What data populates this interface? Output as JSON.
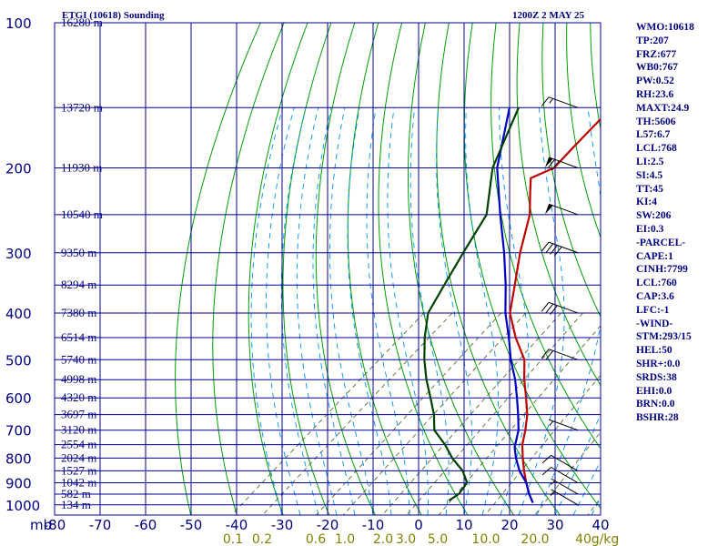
{
  "chart_data": {
    "type": "line",
    "title": "ETGI (10618) Sounding",
    "subtitle": "1200Z  2 MAY 25",
    "pressure_axis": {
      "label": "mb",
      "ticks": [
        100,
        200,
        300,
        400,
        500,
        600,
        700,
        800,
        900,
        1000
      ],
      "range": [
        100,
        1050
      ],
      "scale": "log"
    },
    "temperature_axis": {
      "ticks": [
        -80,
        -70,
        -60,
        -50,
        -40,
        -30,
        -20,
        -10,
        0,
        10,
        20,
        30,
        40
      ],
      "range": [
        -80,
        40
      ]
    },
    "mixing_ratio_axis": {
      "unit": "g/kg",
      "labels": [
        "0.1",
        "0.2",
        "0.6",
        "1.0",
        "2.0",
        "3.0",
        "5.0",
        "10.0",
        "20.0",
        "40"
      ]
    },
    "height_labels": [
      {
        "p": 100,
        "text": "16280 m"
      },
      {
        "p": 150,
        "text": "13720 m"
      },
      {
        "p": 200,
        "text": "11930 m"
      },
      {
        "p": 250,
        "text": "10540 m"
      },
      {
        "p": 300,
        "text": "9350 m"
      },
      {
        "p": 350,
        "text": "8294 m"
      },
      {
        "p": 400,
        "text": "7380 m"
      },
      {
        "p": 450,
        "text": "6514 m"
      },
      {
        "p": 500,
        "text": "5740 m"
      },
      {
        "p": 550,
        "text": "4998 m"
      },
      {
        "p": 600,
        "text": "4320 m"
      },
      {
        "p": 650,
        "text": "3697 m"
      },
      {
        "p": 700,
        "text": "3120 m"
      },
      {
        "p": 750,
        "text": "2554 m"
      },
      {
        "p": 800,
        "text": "2024 m"
      },
      {
        "p": 850,
        "text": "1527 m"
      },
      {
        "p": 900,
        "text": "1042 m"
      },
      {
        "p": 950,
        "text": "582 m"
      },
      {
        "p": 1000,
        "text": "134 m"
      }
    ],
    "series": [
      {
        "key": "temperature",
        "color": "#c00000",
        "points": [
          {
            "p": 100,
            "t": -60.5
          },
          {
            "p": 150,
            "t": -60.0
          },
          {
            "p": 160,
            "t": -60.0
          },
          {
            "p": 180,
            "t": -59.0
          },
          {
            "p": 200,
            "t": -58.0
          },
          {
            "p": 210,
            "t": -60.5
          },
          {
            "p": 225,
            "t": -57.0
          },
          {
            "p": 250,
            "t": -51.5
          },
          {
            "p": 300,
            "t": -44.0
          },
          {
            "p": 350,
            "t": -37.0
          },
          {
            "p": 400,
            "t": -31.0
          },
          {
            "p": 450,
            "t": -23.5
          },
          {
            "p": 500,
            "t": -16.0
          },
          {
            "p": 550,
            "t": -11.0
          },
          {
            "p": 600,
            "t": -6.0
          },
          {
            "p": 650,
            "t": -1.5
          },
          {
            "p": 700,
            "t": 2.0
          },
          {
            "p": 750,
            "t": 5.0
          },
          {
            "p": 800,
            "t": 8.5
          },
          {
            "p": 850,
            "t": 12.0
          },
          {
            "p": 900,
            "t": 15.5
          },
          {
            "p": 950,
            "t": 19.0
          },
          {
            "p": 990,
            "t": 22.0
          }
        ]
      },
      {
        "key": "parcel",
        "color": "#0000c0",
        "points": [
          {
            "p": 150,
            "t": -83.0
          },
          {
            "p": 200,
            "t": -70.5
          },
          {
            "p": 250,
            "t": -58.0
          },
          {
            "p": 300,
            "t": -47.5
          },
          {
            "p": 350,
            "t": -39.0
          },
          {
            "p": 400,
            "t": -32.0
          },
          {
            "p": 450,
            "t": -25.0
          },
          {
            "p": 500,
            "t": -19.0
          },
          {
            "p": 550,
            "t": -13.0
          },
          {
            "p": 600,
            "t": -8.0
          },
          {
            "p": 650,
            "t": -3.5
          },
          {
            "p": 700,
            "t": 0.5
          },
          {
            "p": 760,
            "t": 4.0
          },
          {
            "p": 800,
            "t": 7.0
          },
          {
            "p": 850,
            "t": 11.0
          },
          {
            "p": 900,
            "t": 15.5
          },
          {
            "p": 950,
            "t": 19.0
          },
          {
            "p": 990,
            "t": 22.0
          }
        ]
      },
      {
        "key": "dewpoint",
        "color": "#004000",
        "points": [
          {
            "p": 150,
            "t": -81.0
          },
          {
            "p": 200,
            "t": -71.5
          },
          {
            "p": 250,
            "t": -61.0
          },
          {
            "p": 300,
            "t": -56.5
          },
          {
            "p": 350,
            "t": -52.5
          },
          {
            "p": 400,
            "t": -49.0
          },
          {
            "p": 450,
            "t": -43.5
          },
          {
            "p": 500,
            "t": -38.0
          },
          {
            "p": 550,
            "t": -32.5
          },
          {
            "p": 600,
            "t": -27.0
          },
          {
            "p": 650,
            "t": -22.0
          },
          {
            "p": 700,
            "t": -18.0
          },
          {
            "p": 750,
            "t": -12.0
          },
          {
            "p": 800,
            "t": -7.0
          },
          {
            "p": 850,
            "t": -1.5
          },
          {
            "p": 900,
            "t": 2.5
          },
          {
            "p": 950,
            "t": 3.5
          },
          {
            "p": 980,
            "t": 3.0
          }
        ]
      }
    ],
    "wind_barbs": [
      {
        "p": 150,
        "dir": 290,
        "speed": 15
      },
      {
        "p": 200,
        "dir": 290,
        "speed": 70
      },
      {
        "p": 250,
        "dir": 290,
        "speed": 50
      },
      {
        "p": 300,
        "dir": 290,
        "speed": 40
      },
      {
        "p": 400,
        "dir": 290,
        "speed": 30
      },
      {
        "p": 500,
        "dir": 290,
        "speed": 20
      },
      {
        "p": 700,
        "dir": 290,
        "speed": 5
      },
      {
        "p": 850,
        "dir": 300,
        "speed": 10
      },
      {
        "p": 900,
        "dir": 300,
        "speed": 10
      },
      {
        "p": 950,
        "dir": 300,
        "speed": 5
      },
      {
        "p": 1000,
        "dir": 300,
        "speed": 5
      }
    ],
    "grid": true,
    "colors": {
      "grid": "#000099",
      "dry_adiabat": "#00a000",
      "moist_adiabat": "#0090ff",
      "mixing_ratio": "#556b2f",
      "temperature": "#c00000",
      "parcel": "#0000c0",
      "dewpoint": "#004000",
      "axis_text": "#000080",
      "mixing_text": "#808000"
    }
  },
  "stats": [
    "WMO:10618",
    "TP:207",
    "FRZ:677",
    "WB0:767",
    "PW:0.52",
    "RH:23.6",
    "MAXT:24.9",
    "TH:5606",
    "L57:6.7",
    "LCL:768",
    "LI:2.5",
    "SI:4.5",
    "TT:45",
    "KI:4",
    "SW:206",
    "EI:0.3",
    "-PARCEL-",
    "CAPE:1",
    "CINH:7799",
    "LCL:760",
    "CAP:3.6",
    "LFC:-1",
    "-WIND-",
    "STM:293/15",
    "HEL:50",
    "SHR+:0.0",
    "SRDS:38",
    "EHI:0.0",
    "BRN:0.0",
    "BSHR:28"
  ]
}
